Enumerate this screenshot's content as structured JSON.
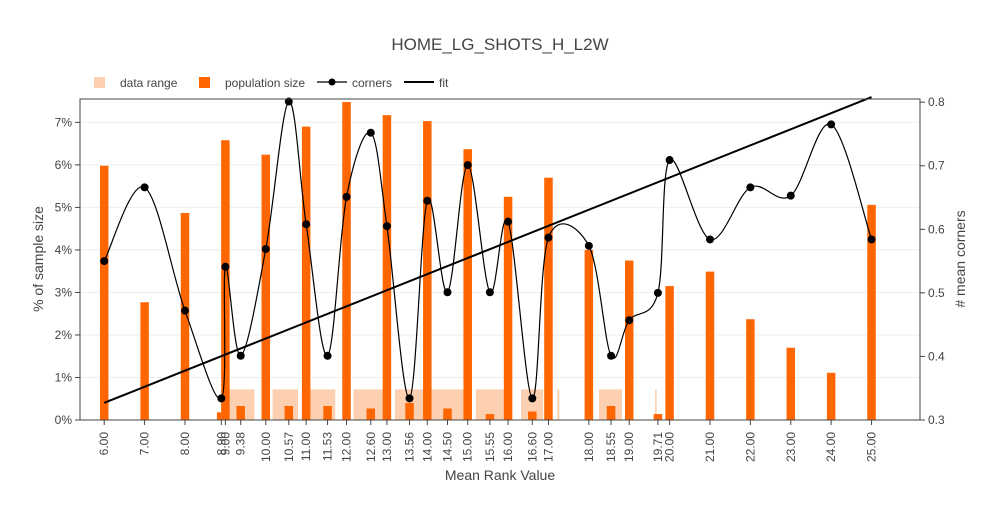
{
  "chart_data": {
    "type": "bar",
    "title": "HOME_LG_SHOTS_H_L2W",
    "xlabel": "Mean Rank Value",
    "ylabel": "% of sample size",
    "y2label": "# mean corners",
    "x_ticks": [
      "6.00",
      "7.00",
      "8.00",
      "8.90",
      "9.00",
      "9.38",
      "10.00",
      "10.57",
      "11.00",
      "11.53",
      "12.00",
      "12.60",
      "13.00",
      "13.56",
      "14.00",
      "14.50",
      "15.00",
      "15.55",
      "16.00",
      "16.60",
      "17.00",
      "18.00",
      "18.55",
      "19.00",
      "19.71",
      "20.00",
      "21.00",
      "22.00",
      "23.00",
      "24.00",
      "25.00"
    ],
    "y_ticks": [
      "0%",
      "1%",
      "2%",
      "3%",
      "4%",
      "5%",
      "6%",
      "7%"
    ],
    "y2_ticks": [
      "0.3",
      "0.4",
      "0.5",
      "0.6",
      "0.7",
      "0.8"
    ],
    "x_range": [
      5.4,
      26.2
    ],
    "y_range": [
      0,
      7.55
    ],
    "y2_range": [
      0.3,
      0.805
    ],
    "legend": {
      "placement": "top-left",
      "items": [
        {
          "label": "data range",
          "kind": "range",
          "color": "#fdd0b1"
        },
        {
          "label": "population size",
          "kind": "bar",
          "color": "#ff6600"
        },
        {
          "label": "corners",
          "kind": "line-marker",
          "color": "#000000"
        },
        {
          "label": "fit",
          "kind": "line",
          "color": "#000000"
        }
      ]
    },
    "series": [
      {
        "name": "population size",
        "color": "#ff6600",
        "x": [
          6.0,
          7.0,
          8.0,
          8.9,
          9.0,
          9.38,
          10.0,
          10.57,
          11.0,
          11.53,
          12.0,
          12.6,
          13.0,
          13.56,
          14.0,
          14.5,
          15.0,
          15.55,
          16.0,
          16.6,
          17.0,
          18.0,
          18.55,
          19.0,
          19.71,
          20.0,
          21.0,
          22.0,
          23.0,
          24.0,
          25.0
        ],
        "values": [
          5.98,
          2.77,
          4.87,
          0.18,
          6.58,
          0.33,
          6.24,
          0.33,
          6.9,
          0.33,
          7.48,
          0.27,
          7.17,
          0.4,
          7.03,
          0.27,
          6.37,
          0.14,
          5.25,
          0.2,
          5.7,
          4.0,
          0.33,
          3.75,
          0.14,
          3.15,
          3.49,
          2.37,
          1.7,
          1.11,
          5.06
        ]
      },
      {
        "name": "data range",
        "color": "#fdd0b1",
        "ranges": [
          [
            8.78,
            8.92
          ],
          [
            8.92,
            9.72
          ],
          [
            10.17,
            10.8
          ],
          [
            11.07,
            11.72
          ],
          [
            12.17,
            13.1
          ],
          [
            13.2,
            14.7
          ],
          [
            14.7,
            15.0
          ],
          [
            15.2,
            15.9
          ],
          [
            16.32,
            16.87
          ],
          [
            17.22,
            17.27
          ],
          [
            18.25,
            18.82
          ],
          [
            19.64,
            19.68
          ]
        ],
        "heights": [
          0.18,
          0.72,
          0.72,
          0.72,
          0.72,
          0.72,
          0.72,
          0.72,
          0.72,
          0.72,
          0.72,
          0.72
        ]
      },
      {
        "name": "corners",
        "color": "#000000",
        "x": [
          6.0,
          7.0,
          8.0,
          8.9,
          9.0,
          9.38,
          10.0,
          10.57,
          11.0,
          11.53,
          12.0,
          12.6,
          13.0,
          13.56,
          14.0,
          14.5,
          15.0,
          15.55,
          16.0,
          16.6,
          17.0,
          18.0,
          18.55,
          19.0,
          19.71,
          20.0,
          21.0,
          22.0,
          23.0,
          24.0,
          25.0
        ],
        "values": [
          0.55,
          0.666,
          0.472,
          0.334,
          0.541,
          0.401,
          0.569,
          0.801,
          0.608,
          0.401,
          0.651,
          0.752,
          0.605,
          0.334,
          0.645,
          0.501,
          0.701,
          0.501,
          0.612,
          0.334,
          0.587,
          0.574,
          0.401,
          0.457,
          0.5,
          0.709,
          0.584,
          0.666,
          0.653,
          0.765,
          0.584
        ]
      },
      {
        "name": "fit",
        "color": "#000000",
        "x": [
          6.0,
          25.0
        ],
        "values": [
          0.327,
          0.808
        ]
      }
    ]
  }
}
